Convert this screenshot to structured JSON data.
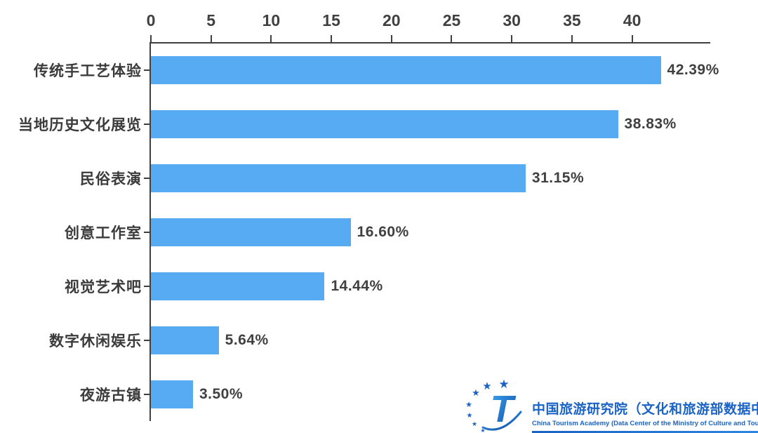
{
  "chart_data": {
    "type": "bar",
    "orientation": "horizontal",
    "title": "",
    "xlabel": "",
    "ylabel": "",
    "categories": [
      "传统手工艺体验",
      "当地历史文化展览",
      "民俗表演",
      "创意工作室",
      "视觉艺术吧",
      "数字休闲娱乐",
      "夜游古镇"
    ],
    "values": [
      42.39,
      38.83,
      31.15,
      16.6,
      14.44,
      5.64,
      3.5
    ],
    "value_labels": [
      "42.39%",
      "38.83%",
      "31.15%",
      "16.60%",
      "14.44%",
      "5.64%",
      "3.50%"
    ],
    "x_ticks": [
      0,
      5,
      10,
      15,
      20,
      25,
      30,
      35,
      40
    ],
    "xlim": [
      0,
      46.5
    ],
    "grid": false,
    "legend": false,
    "bar_color": "#57abf2",
    "axis_color": "#404040",
    "label_color": "#3b3b3b"
  },
  "branding": {
    "logo_glyph": "T",
    "star_glyph": "★",
    "name_zh": "中国旅游研究院（文化和旅游部数据中心）",
    "name_en": "China Tourism Academy (Data Center of the Ministry of Culture and Tourism)",
    "brand_color": "#1a63c5"
  }
}
